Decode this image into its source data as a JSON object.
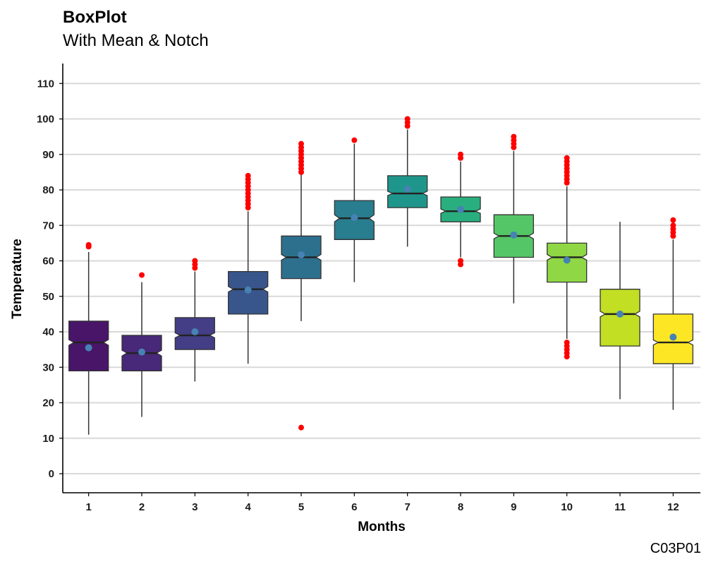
{
  "chart_data": {
    "type": "box",
    "title": "BoxPlot",
    "subtitle": "With Mean & Notch",
    "xlabel": "Months",
    "ylabel": "Temperature",
    "caption": "C03P01",
    "ylim": [
      -5,
      115
    ],
    "yticks": [
      0,
      10,
      20,
      30,
      40,
      50,
      60,
      70,
      80,
      90,
      100,
      110
    ],
    "grid": "horizontal",
    "categories": [
      "1",
      "2",
      "3",
      "4",
      "5",
      "6",
      "7",
      "8",
      "9",
      "10",
      "11",
      "12"
    ],
    "boxes": [
      {
        "month": "1",
        "whisker_low": 11,
        "q1": 29,
        "median": 37,
        "q3": 43,
        "whisker_high": 62.5,
        "mean": 35.5,
        "notch_low": 36.2,
        "notch_high": 37.8,
        "outliers": [
          64,
          64.5
        ],
        "color": "#481568"
      },
      {
        "month": "2",
        "whisker_low": 16,
        "q1": 29,
        "median": 34,
        "q3": 39,
        "whisker_high": 54,
        "mean": 34.3,
        "notch_low": 33.2,
        "notch_high": 34.8,
        "outliers": [
          56
        ],
        "color": "#482878"
      },
      {
        "month": "3",
        "whisker_low": 26,
        "q1": 35,
        "median": 39,
        "q3": 44,
        "whisker_high": 57,
        "mean": 40,
        "notch_low": 38.3,
        "notch_high": 39.7,
        "outliers": [
          58,
          59,
          60
        ],
        "color": "#433E85"
      },
      {
        "month": "4",
        "whisker_low": 31,
        "q1": 45,
        "median": 52,
        "q3": 57,
        "whisker_high": 74,
        "mean": 51.8,
        "notch_low": 51.2,
        "notch_high": 52.8,
        "outliers": [
          75,
          76,
          77,
          78,
          79,
          80,
          81,
          82,
          83,
          84
        ],
        "color": "#39568C"
      },
      {
        "month": "5",
        "whisker_low": 43,
        "q1": 55,
        "median": 61,
        "q3": 67,
        "whisker_high": 85,
        "mean": 61.7,
        "notch_low": 60.2,
        "notch_high": 61.8,
        "outliers": [
          13,
          85,
          86,
          87,
          88,
          89,
          90,
          91,
          92,
          93
        ],
        "color": "#2D708E"
      },
      {
        "month": "6",
        "whisker_low": 54,
        "q1": 66,
        "median": 72,
        "q3": 77,
        "whisker_high": 93,
        "mean": 72.2,
        "notch_low": 71,
        "notch_high": 73,
        "outliers": [
          94
        ],
        "color": "#287D8E"
      },
      {
        "month": "7",
        "whisker_low": 64,
        "q1": 75,
        "median": 79,
        "q3": 84,
        "whisker_high": 97,
        "mean": 80.2,
        "notch_low": 78.4,
        "notch_high": 79.6,
        "outliers": [
          98,
          99,
          100
        ],
        "color": "#1F968B"
      },
      {
        "month": "8",
        "whisker_low": 61,
        "q1": 71,
        "median": 74,
        "q3": 78,
        "whisker_high": 88,
        "mean": 74.5,
        "notch_low": 73.4,
        "notch_high": 74.6,
        "outliers": [
          59,
          60,
          89,
          90
        ],
        "color": "#29AF7F"
      },
      {
        "month": "9",
        "whisker_low": 48,
        "q1": 61,
        "median": 67,
        "q3": 73,
        "whisker_high": 91,
        "mean": 67.3,
        "notch_low": 66.2,
        "notch_high": 67.8,
        "outliers": [
          92,
          93,
          94,
          95
        ],
        "color": "#55C667"
      },
      {
        "month": "10",
        "whisker_low": 38,
        "q1": 54,
        "median": 61,
        "q3": 65,
        "whisker_high": 81,
        "mean": 60.2,
        "notch_low": 60.2,
        "notch_high": 61.8,
        "outliers": [
          33,
          34,
          35,
          36,
          37,
          82,
          83,
          84,
          85,
          86,
          87,
          88,
          89
        ],
        "color": "#8FD744"
      },
      {
        "month": "11",
        "whisker_low": 21,
        "q1": 36,
        "median": 45,
        "q3": 52,
        "whisker_high": 71,
        "mean": 45,
        "notch_low": 44.2,
        "notch_high": 45.8,
        "outliers": [],
        "color": "#C2DF23"
      },
      {
        "month": "12",
        "whisker_low": 18,
        "q1": 31,
        "median": 37,
        "q3": 45,
        "whisker_high": 66,
        "mean": 38.5,
        "notch_low": 36.3,
        "notch_high": 37.7,
        "outliers": [
          67,
          68,
          69,
          70,
          71.5
        ],
        "color": "#FDE725"
      }
    ],
    "colors": {
      "outlier": "#FF0000",
      "mean_point": "#4682B4",
      "box_outline": "#333333",
      "gridline": "#D9D9D9"
    }
  }
}
